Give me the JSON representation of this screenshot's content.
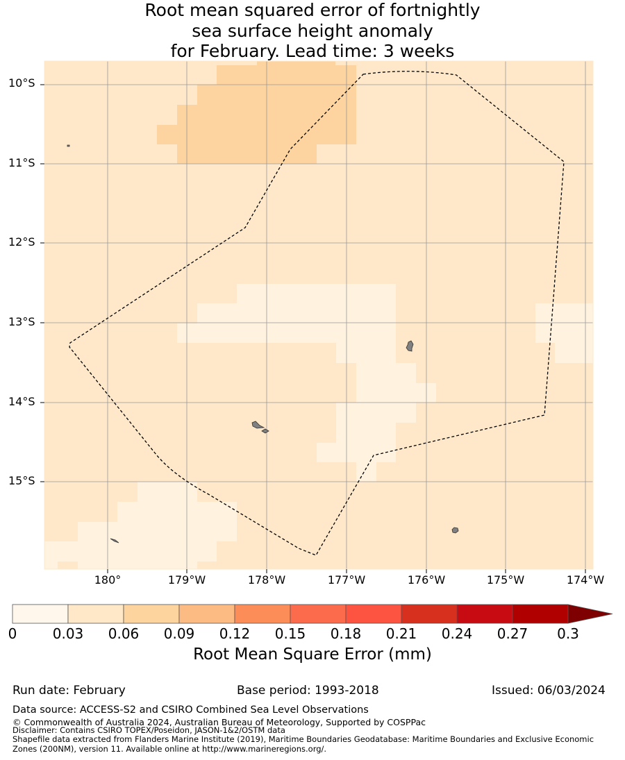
{
  "title_lines": [
    "Root mean squared error of fortnightly",
    "sea surface height anomaly",
    "for February. Lead time: 3 weeks"
  ],
  "map": {
    "lat_labels": [
      "10°S",
      "11°S",
      "12°S",
      "13°S",
      "14°S",
      "15°S"
    ],
    "lon_labels": [
      "180°",
      "179°W",
      "178°W",
      "177°W",
      "176°W",
      "175°W",
      "174°W"
    ],
    "colors": {
      "background": "#fee8c9",
      "low": "#fff2df",
      "mid": "#fdd49f",
      "land": "#808080",
      "boundary": "#000000",
      "grid": "#999999"
    }
  },
  "colorbar": {
    "colors": [
      "#fff7ec",
      "#fee8c8",
      "#fdd49e",
      "#fdbb84",
      "#fc8d59",
      "#fc6b4b",
      "#fc5440",
      "#d7301f",
      "#c80b12",
      "#b00000",
      "#7f0000"
    ],
    "ticks": [
      "0",
      "0.03",
      "0.06",
      "0.09",
      "0.12",
      "0.15",
      "0.18",
      "0.21",
      "0.24",
      "0.27",
      "0.3"
    ],
    "label": "Root Mean Square Error (mm)"
  },
  "info": {
    "run_date": "Run date: February",
    "base_period": "Base period: 1993-2018",
    "issued": "Issued: 06/03/2024"
  },
  "footer": {
    "source": "Data source: ACCESS-S2 and CSIRO Combined Sea Level Observations",
    "copyright": "© Commonwealth of Australia 2024, Australian Bureau of Meteorology, Supported by COSPPac",
    "disclaimer": "Disclaimer: Contains CSIRO TOPEX/Poseidon, JASON-1&2/OSTM data",
    "shapefile1": "Shapefile data extracted from Flanders Marine Institute (2019), Maritime Boundaries Geodatabase: Maritime Boundaries and Exclusive Economic",
    "shapefile2": "Zones (200NM), version 11. Available online at http://www.marineregions.org/."
  }
}
